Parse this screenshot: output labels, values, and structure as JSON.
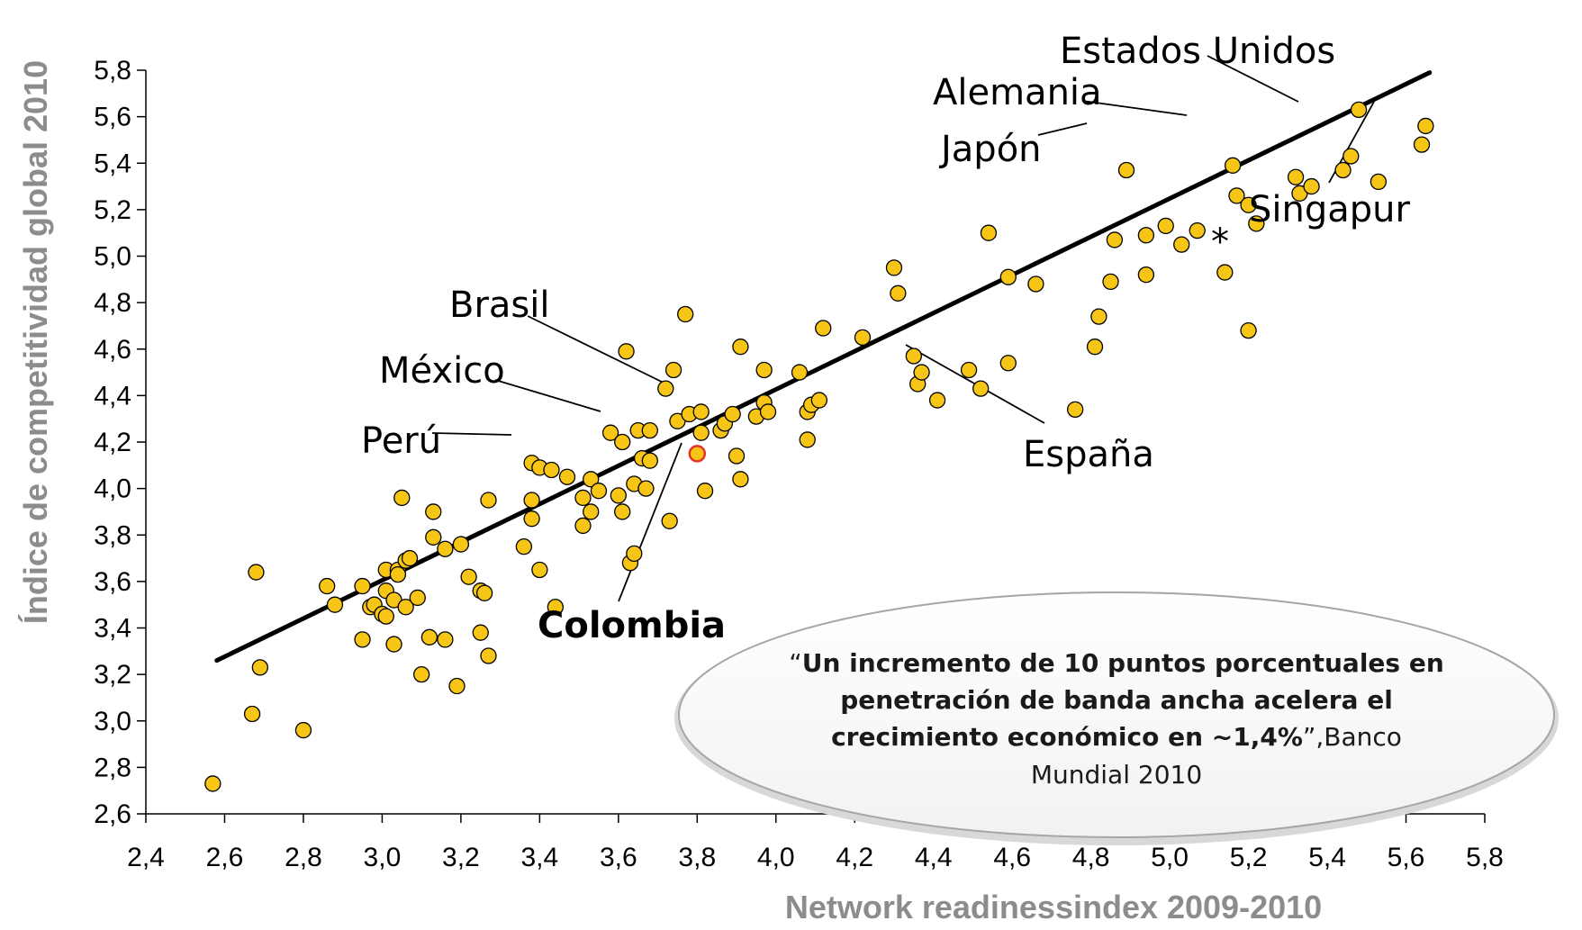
{
  "chart_data": {
    "type": "scatter",
    "xlabel": "Network readinessindex 2009-2010",
    "ylabel": "Índice de competitividad global 2010",
    "xlim": [
      2.4,
      5.8
    ],
    "ylim": [
      2.6,
      5.8
    ],
    "x_ticks": [
      "2,4",
      "2,6",
      "2,8",
      "3,0",
      "3,2",
      "3,4",
      "3,6",
      "3,8",
      "4,0",
      "4,2",
      "4,4",
      "4,6",
      "4,8",
      "5,0",
      "5,2",
      "5,4",
      "5,6",
      "5,8"
    ],
    "y_ticks": [
      "2,6",
      "2,8",
      "3,0",
      "3,2",
      "3,4",
      "3,6",
      "3,8",
      "4,0",
      "4,2",
      "4,4",
      "4,6",
      "4,8",
      "5,0",
      "5,2",
      "5,4",
      "5,6",
      "5,8"
    ],
    "grid": false,
    "marker_color": "#f6c515",
    "marker_edge": "#000000",
    "highlight_color": "#e8302a",
    "highlight_point": [
      3.8,
      4.15
    ],
    "trendline": {
      "x": [
        2.58,
        5.66
      ],
      "y": [
        3.26,
        5.79
      ]
    },
    "points": [
      [
        2.57,
        2.73
      ],
      [
        2.67,
        3.03
      ],
      [
        2.68,
        3.64
      ],
      [
        2.69,
        3.23
      ],
      [
        2.8,
        2.96
      ],
      [
        2.86,
        3.58
      ],
      [
        2.88,
        3.5
      ],
      [
        2.95,
        3.58
      ],
      [
        2.95,
        3.35
      ],
      [
        2.97,
        3.49
      ],
      [
        2.98,
        3.5
      ],
      [
        3.0,
        3.46
      ],
      [
        3.01,
        3.45
      ],
      [
        3.01,
        3.56
      ],
      [
        3.01,
        3.65
      ],
      [
        3.03,
        3.33
      ],
      [
        3.03,
        3.52
      ],
      [
        3.04,
        3.65
      ],
      [
        3.04,
        3.63
      ],
      [
        3.05,
        3.96
      ],
      [
        3.06,
        3.69
      ],
      [
        3.06,
        3.49
      ],
      [
        3.07,
        3.7
      ],
      [
        3.09,
        3.53
      ],
      [
        3.1,
        3.2
      ],
      [
        3.12,
        3.36
      ],
      [
        3.13,
        3.79
      ],
      [
        3.13,
        3.9
      ],
      [
        3.16,
        3.74
      ],
      [
        3.16,
        3.35
      ],
      [
        3.19,
        3.15
      ],
      [
        3.2,
        3.76
      ],
      [
        3.22,
        3.62
      ],
      [
        3.25,
        3.56
      ],
      [
        3.25,
        3.38
      ],
      [
        3.26,
        3.55
      ],
      [
        3.27,
        3.95
      ],
      [
        3.27,
        3.28
      ],
      [
        3.36,
        3.75
      ],
      [
        3.38,
        4.11
      ],
      [
        3.38,
        3.95
      ],
      [
        3.38,
        3.87
      ],
      [
        3.4,
        4.09
      ],
      [
        3.4,
        3.65
      ],
      [
        3.43,
        4.08
      ],
      [
        3.44,
        3.49
      ],
      [
        3.47,
        4.05
      ],
      [
        3.51,
        3.96
      ],
      [
        3.51,
        3.84
      ],
      [
        3.53,
        3.9
      ],
      [
        3.53,
        4.04
      ],
      [
        3.55,
        3.99
      ],
      [
        3.58,
        4.24
      ],
      [
        3.6,
        3.97
      ],
      [
        3.61,
        3.9
      ],
      [
        3.61,
        4.2
      ],
      [
        3.62,
        4.59
      ],
      [
        3.63,
        3.68
      ],
      [
        3.64,
        4.02
      ],
      [
        3.64,
        3.72
      ],
      [
        3.65,
        4.25
      ],
      [
        3.66,
        4.13
      ],
      [
        3.67,
        4.0
      ],
      [
        3.68,
        4.25
      ],
      [
        3.68,
        4.12
      ],
      [
        3.72,
        4.43
      ],
      [
        3.73,
        3.86
      ],
      [
        3.74,
        4.51
      ],
      [
        3.75,
        4.29
      ],
      [
        3.77,
        4.75
      ],
      [
        3.78,
        4.32
      ],
      [
        3.81,
        4.33
      ],
      [
        3.81,
        4.24
      ],
      [
        3.82,
        3.99
      ],
      [
        3.86,
        4.25
      ],
      [
        3.87,
        4.28
      ],
      [
        3.89,
        4.32
      ],
      [
        3.9,
        4.14
      ],
      [
        3.91,
        4.61
      ],
      [
        3.91,
        4.04
      ],
      [
        3.95,
        4.31
      ],
      [
        3.97,
        4.51
      ],
      [
        3.97,
        4.37
      ],
      [
        3.98,
        4.33
      ],
      [
        4.06,
        4.5
      ],
      [
        4.08,
        4.21
      ],
      [
        4.08,
        4.33
      ],
      [
        4.09,
        4.36
      ],
      [
        4.11,
        4.38
      ],
      [
        4.12,
        4.69
      ],
      [
        4.22,
        4.65
      ],
      [
        4.3,
        4.95
      ],
      [
        4.31,
        4.84
      ],
      [
        4.35,
        4.57
      ],
      [
        4.36,
        4.45
      ],
      [
        4.37,
        4.5
      ],
      [
        4.41,
        4.38
      ],
      [
        4.49,
        4.51
      ],
      [
        4.52,
        4.43
      ],
      [
        4.54,
        5.1
      ],
      [
        4.59,
        4.91
      ],
      [
        4.59,
        4.54
      ],
      [
        4.66,
        4.88
      ],
      [
        4.76,
        4.34
      ],
      [
        4.81,
        4.61
      ],
      [
        4.82,
        4.74
      ],
      [
        4.85,
        4.89
      ],
      [
        4.86,
        5.07
      ],
      [
        4.89,
        5.37
      ],
      [
        4.94,
        4.92
      ],
      [
        4.94,
        5.09
      ],
      [
        4.99,
        5.13
      ],
      [
        5.03,
        5.05
      ],
      [
        5.07,
        5.11
      ],
      [
        5.14,
        4.93
      ],
      [
        5.16,
        5.39
      ],
      [
        5.17,
        5.26
      ],
      [
        5.2,
        4.68
      ],
      [
        5.2,
        5.22
      ],
      [
        5.22,
        5.14
      ],
      [
        5.32,
        5.34
      ],
      [
        5.33,
        5.27
      ],
      [
        5.36,
        5.3
      ],
      [
        5.44,
        5.37
      ],
      [
        5.46,
        5.43
      ],
      [
        5.48,
        5.63
      ],
      [
        5.53,
        5.32
      ],
      [
        5.64,
        5.48
      ],
      [
        5.65,
        5.56
      ]
    ],
    "annotations": [
      {
        "label": "Estados Unidos",
        "bold": false
      },
      {
        "label": "Alemania",
        "bold": false
      },
      {
        "label": "Japón",
        "bold": false
      },
      {
        "label": "Singapur",
        "bold": false
      },
      {
        "label": "Brasil",
        "bold": false
      },
      {
        "label": "México",
        "bold": false
      },
      {
        "label": "Perú",
        "bold": false
      },
      {
        "label": "España",
        "bold": false
      },
      {
        "label": "Colombia",
        "bold": true
      },
      {
        "label": "*",
        "bold": false
      }
    ],
    "quote": {
      "open": "“",
      "bold_lines": [
        "Un incremento de 10 puntos porcentuales en",
        "penetración de banda ancha acelera el",
        "crecimiento económico en ~1,4%"
      ],
      "close_tail": "”,Banco",
      "last_line": "Mundial 2010"
    }
  }
}
